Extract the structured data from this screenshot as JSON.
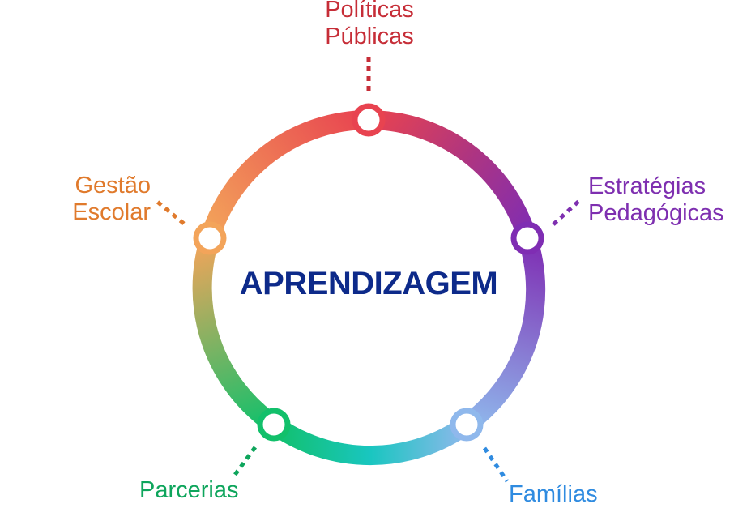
{
  "center": {
    "title": "APRENDIZAGEM",
    "color": "#0d2a8a"
  },
  "nodes": [
    {
      "id": "politicas-publicas",
      "lines": [
        "Políticas",
        "Públicas"
      ],
      "color": "#c62d37"
    },
    {
      "id": "estrategias-pedagogicas",
      "lines": [
        "Estratégias",
        "Pedagógicas"
      ],
      "color": "#7e2fb0"
    },
    {
      "id": "familias",
      "lines": [
        "Famílias"
      ],
      "color": "#2f8be0"
    },
    {
      "id": "parcerias",
      "lines": [
        "Parcerias"
      ],
      "color": "#0ea55c"
    },
    {
      "id": "gestao-escolar",
      "lines": [
        "Gestão",
        "Escolar"
      ],
      "color": "#e07a2c"
    }
  ],
  "ring_colors": {
    "top": "#e84350",
    "top_right": "#b0357f",
    "right": "#7f2db3",
    "lower_right": "#8fb8ec",
    "bottom": "#19c6c0",
    "lower_left": "#12c06b",
    "left": "#f3a45a",
    "upper_left": "#ff8c4a"
  }
}
